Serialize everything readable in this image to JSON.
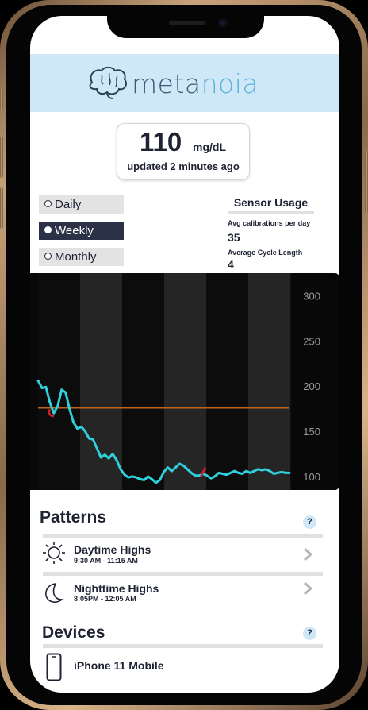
{
  "brand": {
    "name_part1": "meta",
    "name_part2": "noia",
    "logo_icon": "brain-icon"
  },
  "glucose": {
    "value": "110",
    "unit": "mg/dL",
    "updated": "updated 2 minutes ago"
  },
  "ranges": [
    {
      "label": "Daily",
      "selected": false
    },
    {
      "label": "Weekly",
      "selected": true
    },
    {
      "label": "Monthly",
      "selected": false
    }
  ],
  "sensor": {
    "title": "Sensor Usage",
    "calibrations_label": "Avg calibrations per day",
    "calibrations_value": "35",
    "cycle_label": "Average Cycle Length",
    "cycle_value": "4"
  },
  "chart_data": {
    "type": "line",
    "ylim": [
      85,
      325
    ],
    "yticks": [
      "300",
      "250",
      "200",
      "150",
      "100"
    ],
    "threshold": 176,
    "threshold_color": "#c0621a",
    "line_color": "#2fd0dc",
    "marker_color": "#d41f2a",
    "x": [
      0,
      1,
      2,
      3,
      4,
      5,
      6,
      7,
      8,
      9,
      10,
      11,
      12,
      13,
      14,
      15,
      16,
      17,
      18,
      19,
      20,
      21,
      22,
      23,
      24,
      25,
      26,
      27,
      28,
      29,
      30,
      31,
      32,
      33,
      34,
      35,
      36,
      37,
      38,
      39,
      40,
      41,
      42,
      43,
      44,
      45,
      46,
      47,
      48,
      49,
      50,
      51,
      52,
      53,
      54,
      55,
      56,
      57,
      58,
      59,
      60,
      61,
      62,
      63,
      64
    ],
    "values": [
      206,
      198,
      199,
      182,
      170,
      178,
      196,
      193,
      175,
      160,
      153,
      155,
      150,
      142,
      141,
      131,
      121,
      124,
      120,
      125,
      118,
      108,
      102,
      99,
      100,
      99,
      97,
      96,
      100,
      97,
      93,
      96,
      105,
      110,
      106,
      110,
      114,
      112,
      108,
      104,
      101,
      101,
      103,
      101,
      98,
      100,
      104,
      103,
      102,
      104,
      106,
      104,
      103,
      106,
      104,
      106,
      108,
      107,
      108,
      106,
      103,
      104,
      105,
      104,
      104
    ]
  },
  "patterns": {
    "title": "Patterns",
    "help": "?",
    "items": [
      {
        "title": "Daytime Highs",
        "time": "9:30 AM - 11:15 AM",
        "icon": "sun-icon"
      },
      {
        "title": "Nighttime Highs",
        "time": "8:05PM - 12:05 AM",
        "icon": "moon-icon"
      }
    ]
  },
  "devices": {
    "title": "Devices",
    "help": "?",
    "items": [
      {
        "name": "iPhone 11 Mobile",
        "icon": "phone-icon"
      }
    ]
  }
}
